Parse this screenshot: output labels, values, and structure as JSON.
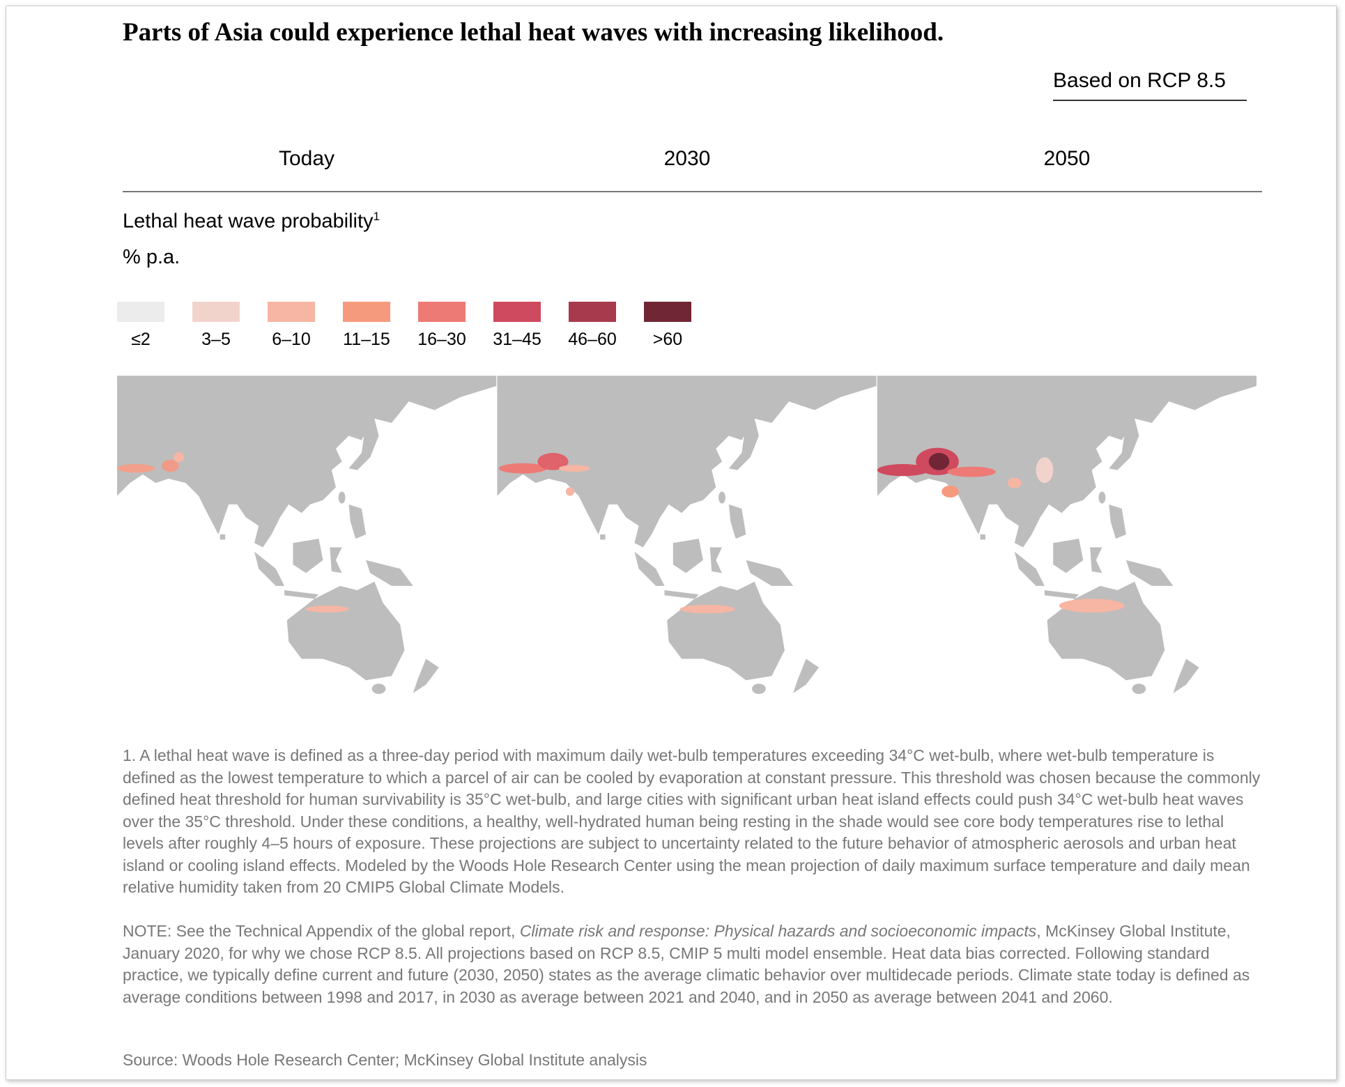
{
  "header": {
    "title": "Parts of Asia could experience lethal heat waves with increasing likelihood.",
    "scenario": "Based on RCP 8.5"
  },
  "columns": [
    "Today",
    "2030",
    "2050"
  ],
  "legend": {
    "title": "Lethal heat wave probability",
    "title_note": "1",
    "unit": "% p.a.",
    "bins": [
      {
        "label": "≤2",
        "color": "#ececec"
      },
      {
        "label": "3–5",
        "color": "#f2d3cb"
      },
      {
        "label": "6–10",
        "color": "#f6b6a3"
      },
      {
        "label": "11–15",
        "color": "#f69a7e"
      },
      {
        "label": "16–30",
        "color": "#ee7a75"
      },
      {
        "label": "31–45",
        "color": "#cf4a5e"
      },
      {
        "label": "46–60",
        "color": "#a83a4e"
      },
      {
        "label": ">60",
        "color": "#702634"
      }
    ]
  },
  "footnote": "1. A lethal heat wave is defined as a three-day period with maximum daily wet-bulb temperatures exceeding 34°C wet-bulb, where wet-bulb temperature is defined as the lowest temperature to which a parcel of air can be cooled by evaporation at constant pressure. This threshold was chosen because the commonly defined heat threshold for human survivability is 35°C wet-bulb, and large cities with significant urban heat island effects could push 34°C wet-bulb heat waves over the 35°C threshold. Under these conditions, a healthy, well-hydrated human being resting in the shade would see core body temperatures rise to lethal levels after roughly 4–5 hours of exposure. These projections are subject to uncertainty related to the future behavior of atmospheric aerosols and urban heat island or cooling island effects. Modeled by the Woods Hole Research Center using the mean projection of daily maximum surface temperature and daily mean relative humidity taken from 20 CMIP5 Global Climate Models.",
  "note": {
    "before": "NOTE: See the Technical Appendix of the global report, ",
    "italic": "Climate risk and response: Physical hazards and socioeconomic impacts",
    "after": ", McKinsey Global Institute, January 2020, for why we chose RCP 8.5. All projections based on RCP 8.5, CMIP 5 multi model ensemble. Heat data bias corrected. Following standard practice, we typically define current and future (2030, 2050) states as the average climatic behavior over multidecade periods. Climate state today is defined as average conditions between 1998 and 2017, in 2030 as average between 2021 and 2040, and in 2050 as average between 2041 and 2060."
  },
  "source": "Source: Woods Hole Research Center; McKinsey Global Institute analysis"
}
